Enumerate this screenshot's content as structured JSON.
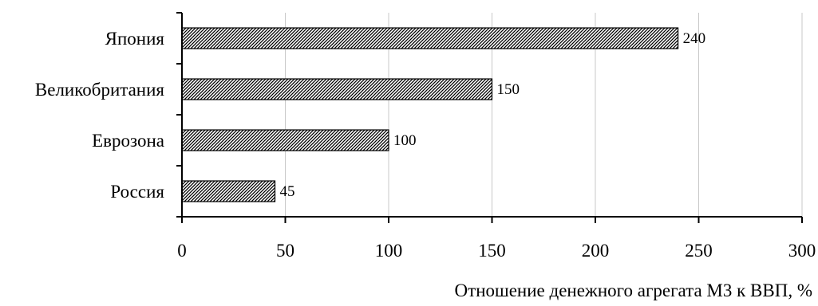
{
  "chart_data": {
    "type": "bar",
    "orientation": "horizontal",
    "categories": [
      "Япония",
      "Великобритания",
      "Еврозона",
      "Россия"
    ],
    "values": [
      240,
      150,
      100,
      45
    ],
    "data_labels": [
      "240",
      "150",
      "100",
      "45"
    ],
    "title": "",
    "xlabel": "Отношение денежного агрегата М3 к ВВП, %",
    "ylabel": "",
    "xlim": [
      0,
      300
    ],
    "x_ticks": [
      0,
      50,
      100,
      150,
      200,
      250,
      300
    ],
    "x_tick_labels": [
      "0",
      "50",
      "100",
      "150",
      "200",
      "250",
      "300"
    ],
    "grid": "vertical",
    "legend": "none",
    "bar_fill": "diagonal-hatch",
    "colors": {
      "bar_ink": "#000000",
      "bar_background": "#ffffff",
      "grid": "#c8c8c8",
      "axis": "#000000"
    }
  }
}
